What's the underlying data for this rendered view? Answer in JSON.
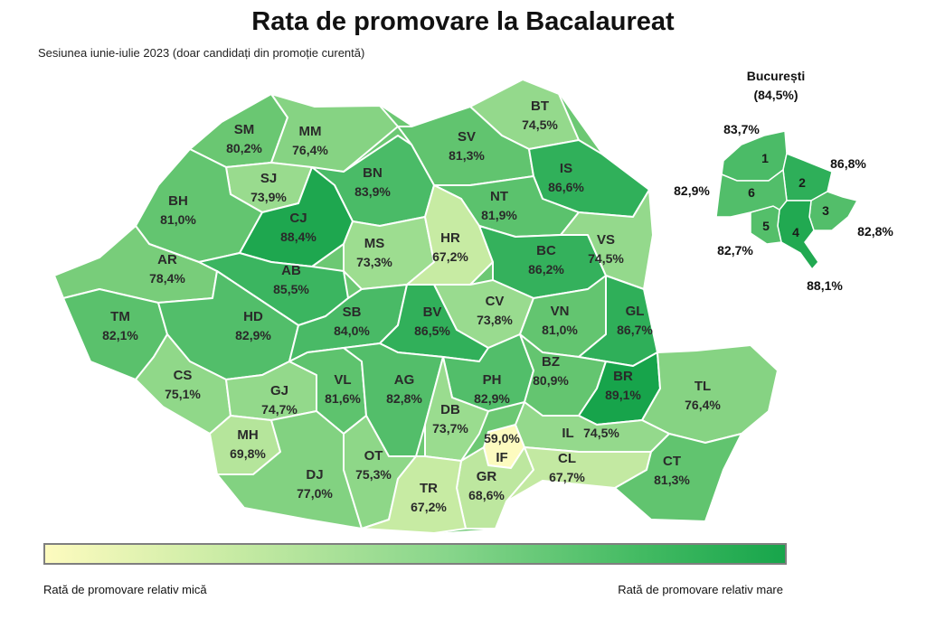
{
  "title": "Rata de promovare la Bacalaureat",
  "subtitle": "Sesiunea iunie-iulie 2023 (doar candidați din promoție curentă)",
  "color_scale": {
    "low_color": "#fdfbbf",
    "high_color": "#17a54b",
    "low_label": "Rată de promovare relativ mică",
    "high_label": "Rată de promovare relativ mare"
  },
  "counties": [
    {
      "code": "SM",
      "value": "80,2%",
      "rate": 80.2
    },
    {
      "code": "MM",
      "value": "76,4%",
      "rate": 76.4
    },
    {
      "code": "BT",
      "value": "74,5%",
      "rate": 74.5
    },
    {
      "code": "SV",
      "value": "81,3%",
      "rate": 81.3
    },
    {
      "code": "SJ",
      "value": "73,9%",
      "rate": 73.9
    },
    {
      "code": "BN",
      "value": "83,9%",
      "rate": 83.9
    },
    {
      "code": "IS",
      "value": "86,6%",
      "rate": 86.6
    },
    {
      "code": "BH",
      "value": "81,0%",
      "rate": 81.0
    },
    {
      "code": "CJ",
      "value": "88,4%",
      "rate": 88.4
    },
    {
      "code": "NT",
      "value": "81,9%",
      "rate": 81.9
    },
    {
      "code": "MS",
      "value": "73,3%",
      "rate": 73.3
    },
    {
      "code": "HR",
      "value": "67,2%",
      "rate": 67.2
    },
    {
      "code": "BC",
      "value": "86,2%",
      "rate": 86.2
    },
    {
      "code": "VS",
      "value": "74,5%",
      "rate": 74.5
    },
    {
      "code": "AR",
      "value": "78,4%",
      "rate": 78.4
    },
    {
      "code": "AB",
      "value": "85,5%",
      "rate": 85.5
    },
    {
      "code": "CV",
      "value": "73,8%",
      "rate": 73.8
    },
    {
      "code": "TM",
      "value": "82,1%",
      "rate": 82.1
    },
    {
      "code": "HD",
      "value": "82,9%",
      "rate": 82.9
    },
    {
      "code": "SB",
      "value": "84,0%",
      "rate": 84.0
    },
    {
      "code": "BV",
      "value": "86,5%",
      "rate": 86.5
    },
    {
      "code": "VN",
      "value": "81,0%",
      "rate": 81.0
    },
    {
      "code": "GL",
      "value": "86,7%",
      "rate": 86.7
    },
    {
      "code": "CS",
      "value": "75,1%",
      "rate": 75.1
    },
    {
      "code": "GJ",
      "value": "74,7%",
      "rate": 74.7
    },
    {
      "code": "VL",
      "value": "81,6%",
      "rate": 81.6
    },
    {
      "code": "AG",
      "value": "82,8%",
      "rate": 82.8
    },
    {
      "code": "PH",
      "value": "82,9%",
      "rate": 82.9
    },
    {
      "code": "BZ",
      "value": "80,9%",
      "rate": 80.9
    },
    {
      "code": "BR",
      "value": "89,1%",
      "rate": 89.1
    },
    {
      "code": "TL",
      "value": "76,4%",
      "rate": 76.4
    },
    {
      "code": "DB",
      "value": "73,7%",
      "rate": 73.7
    },
    {
      "code": "MH",
      "value": "69,8%",
      "rate": 69.8
    },
    {
      "code": "IF",
      "value": "59,0%",
      "rate": 59.0
    },
    {
      "code": "IL",
      "value": "74,5%",
      "rate": 74.5
    },
    {
      "code": "DJ",
      "value": "77,0%",
      "rate": 77.0
    },
    {
      "code": "OT",
      "value": "75,3%",
      "rate": 75.3
    },
    {
      "code": "GR",
      "value": "68,6%",
      "rate": 68.6
    },
    {
      "code": "CL",
      "value": "67,7%",
      "rate": 67.7
    },
    {
      "code": "TR",
      "value": "67,2%",
      "rate": 67.2
    },
    {
      "code": "CT",
      "value": "81,3%",
      "rate": 81.3
    }
  ],
  "bucharest": {
    "name": "București",
    "value": "(84,5%)",
    "sectors": [
      {
        "number": "1",
        "value": "83,7%",
        "rate": 83.7
      },
      {
        "number": "2",
        "value": "86,8%",
        "rate": 86.8
      },
      {
        "number": "3",
        "value": "82,8%",
        "rate": 82.8
      },
      {
        "number": "4",
        "value": "88,1%",
        "rate": 88.1
      },
      {
        "number": "5",
        "value": "82,7%",
        "rate": 82.7
      },
      {
        "number": "6",
        "value": "82,9%",
        "rate": 82.9
      }
    ]
  }
}
